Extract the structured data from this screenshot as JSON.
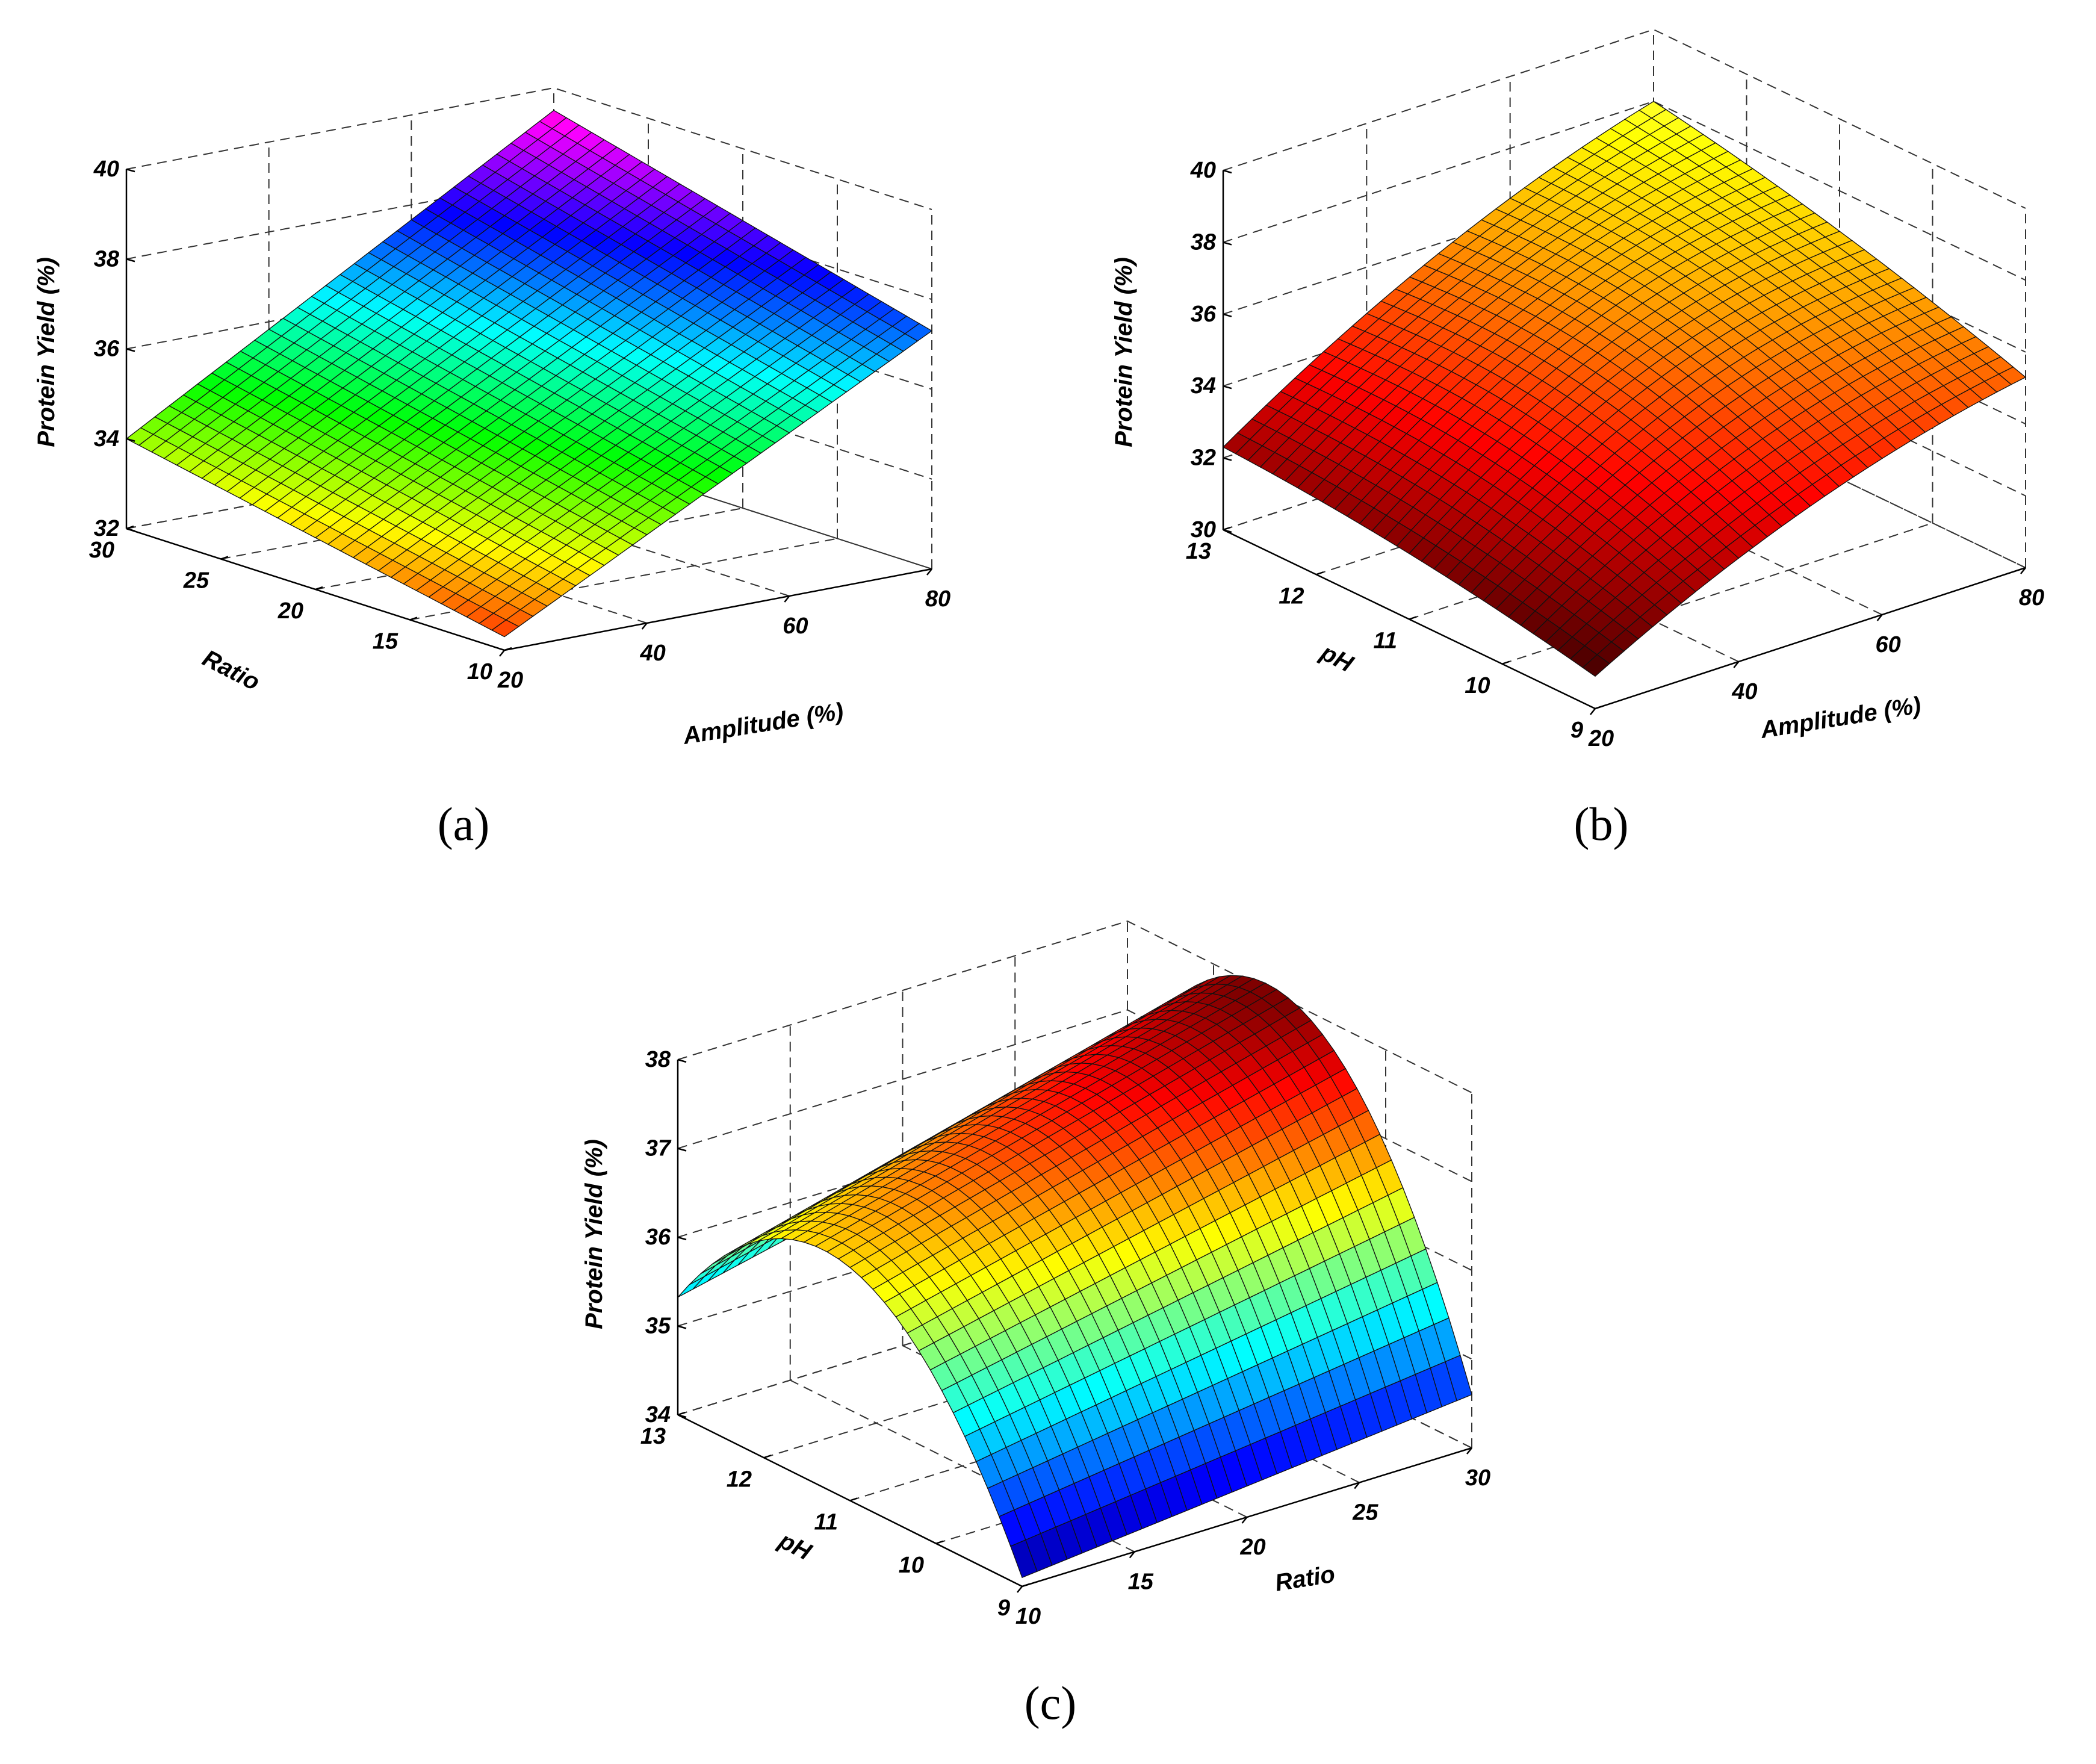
{
  "chart_data": [
    {
      "type": "surface",
      "panel_label": "(a)",
      "xlabel": "Amplitude (%)",
      "ylabel": "Ratio",
      "zlabel": "Protein Yield (%)",
      "xlim": [
        20,
        80
      ],
      "ylim": [
        10,
        30
      ],
      "zlim": [
        32,
        40
      ],
      "xticks": [
        "20",
        "40",
        "60",
        "80"
      ],
      "yticks": [
        "10",
        "15",
        "20",
        "25",
        "30"
      ],
      "zticks": [
        "32",
        "34",
        "36",
        "38",
        "40"
      ],
      "colormap": "hsv",
      "grid": true,
      "corner_values": {
        "amp20_ratio10": 32.3,
        "amp20_ratio30": 34.0,
        "amp80_ratio10": 37.3,
        "amp80_ratio30": 39.6
      }
    },
    {
      "type": "surface",
      "panel_label": "(b)",
      "xlabel": "Amplitude (%)",
      "ylabel": "pH",
      "zlabel": "Protein Yield (%)",
      "xlim": [
        20,
        80
      ],
      "ylim": [
        9,
        13
      ],
      "zlim": [
        30,
        40
      ],
      "xticks": [
        "20",
        "40",
        "60",
        "80"
      ],
      "yticks": [
        "9",
        "10",
        "11",
        "12",
        "13"
      ],
      "zticks": [
        "30",
        "32",
        "34",
        "36",
        "38",
        "40"
      ],
      "colormap": "hot",
      "grid": true,
      "corner_values": {
        "amp20_ph9": 30.4,
        "amp20_ph13": 32.0,
        "amp80_ph9": 36.5,
        "amp80_ph13": 38.0,
        "peak": 40.0
      }
    },
    {
      "type": "surface",
      "panel_label": "(c)",
      "xlabel": "Ratio",
      "ylabel": "pH",
      "zlabel": "Protein Yield (%)",
      "xlim": [
        10,
        30
      ],
      "ylim": [
        9,
        13
      ],
      "zlim": [
        34,
        38
      ],
      "xticks": [
        "10",
        "15",
        "20",
        "25",
        "30"
      ],
      "yticks": [
        "9",
        "10",
        "11",
        "12",
        "13"
      ],
      "zticks": [
        "34",
        "35",
        "36",
        "37",
        "38"
      ],
      "colormap": "jet",
      "grid": true,
      "corner_values": {
        "ratio10_ph9": 34.1,
        "ratio10_ph13": 34.6,
        "ratio30_ph9": 35.2,
        "ratio30_ph13": 35.6,
        "peak": 37.7
      }
    }
  ]
}
